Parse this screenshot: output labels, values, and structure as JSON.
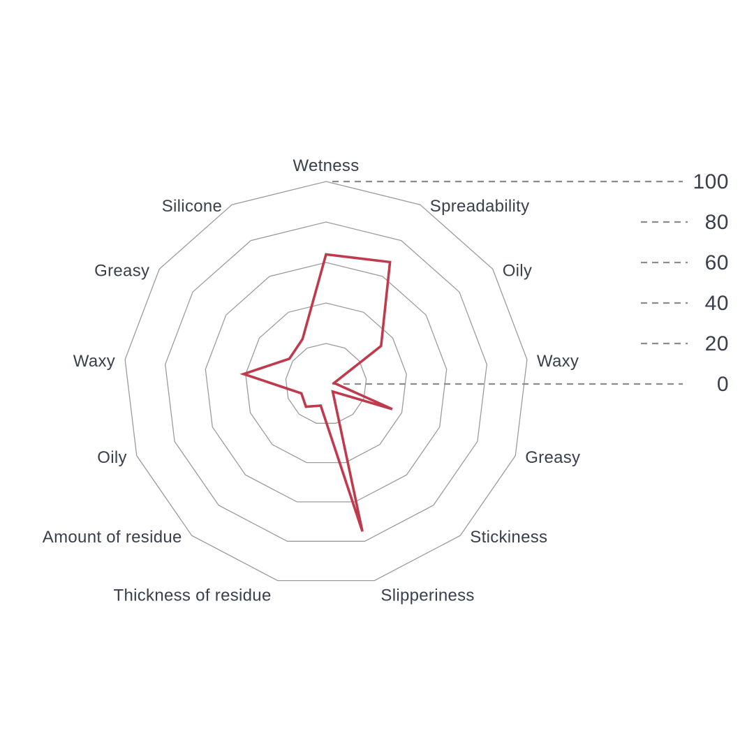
{
  "chart_data": {
    "type": "radar",
    "title": "",
    "axes": [
      "Wetness",
      "Spreadability",
      "Oily",
      "Waxy",
      "Greasy",
      "Stickiness",
      "Slipperiness",
      "Thickness of residue",
      "Amount of residue",
      "Oily",
      "Waxy",
      "Greasy",
      "Silicone"
    ],
    "series": [
      {
        "values": [
          64,
          68,
          33,
          4,
          35,
          5,
          75,
          11,
          15,
          13,
          41,
          22,
          25
        ],
        "color": "#bf3a4c"
      }
    ],
    "scale": {
      "min": 0,
      "max": 100,
      "step": 20,
      "ticks": [
        {
          "label": "100",
          "value": 100,
          "long": true
        },
        {
          "label": "80",
          "value": 80,
          "long": false
        },
        {
          "label": "60",
          "value": 60,
          "long": false
        },
        {
          "label": "40",
          "value": 40,
          "long": false
        },
        {
          "label": "20",
          "value": 20,
          "long": false
        },
        {
          "label": "0",
          "value": 0,
          "long": true
        }
      ]
    },
    "grid_levels": [
      20,
      40,
      60,
      80,
      100
    ],
    "layout_hints": {
      "grid": "concentric 13-gon rings, no radial spokes",
      "legend": "none",
      "tick_labels_position": "right"
    },
    "colors": {
      "grid_line": "#9b9b9b",
      "tick_dash_line": "#8c8c8c",
      "text": "#39404c",
      "background": "#ffffff"
    }
  }
}
